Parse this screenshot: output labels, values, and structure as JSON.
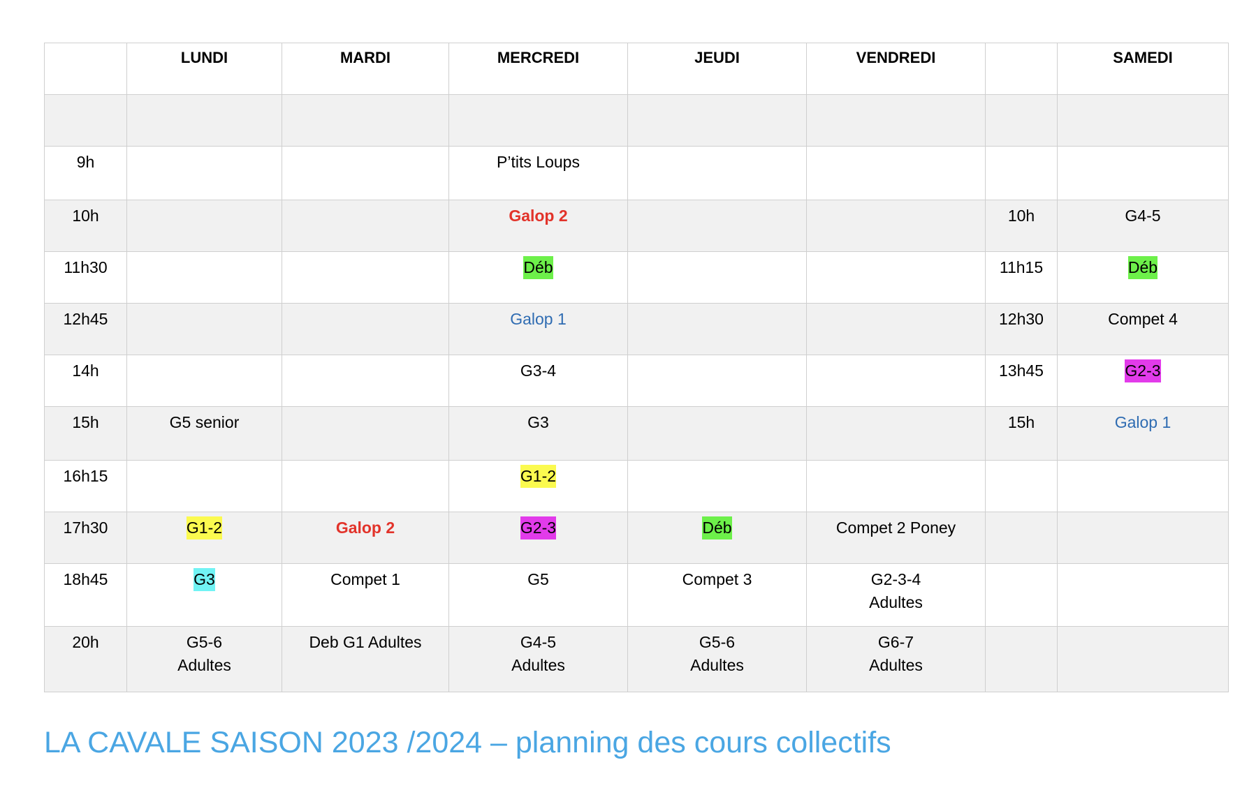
{
  "header": {
    "lundi": "LUNDI",
    "mardi": "MARDI",
    "mercredi": "MERCREDI",
    "jeudi": "JEUDI",
    "vendredi": "VENDREDI",
    "samedi": "SAMEDI"
  },
  "rows": [
    {
      "time": "9h",
      "lundi": "",
      "mardi": "",
      "mercredi": "P’tits Loups",
      "jeudi": "",
      "vendredi": "",
      "sat_time": "",
      "samedi": ""
    },
    {
      "time": "10h",
      "lundi": "",
      "mardi": "",
      "mercredi": "Galop 2",
      "jeudi": "",
      "vendredi": "",
      "sat_time": "10h",
      "samedi": "G4-5"
    },
    {
      "time": "11h30",
      "lundi": "",
      "mardi": "",
      "mercredi": "Déb",
      "jeudi": "",
      "vendredi": "",
      "sat_time": "11h15",
      "samedi": "Déb"
    },
    {
      "time": "12h45",
      "lundi": "",
      "mardi": "",
      "mercredi": "Galop 1",
      "jeudi": "",
      "vendredi": "",
      "sat_time": "12h30",
      "samedi": "Compet 4"
    },
    {
      "time": "14h",
      "lundi": "",
      "mardi": "",
      "mercredi": "G3-4",
      "jeudi": "",
      "vendredi": "",
      "sat_time": "13h45",
      "samedi": "G2-3"
    },
    {
      "time": "15h",
      "lundi": "G5 senior",
      "mardi": "",
      "mercredi": "G3",
      "jeudi": "",
      "vendredi": "",
      "sat_time": "15h",
      "samedi": "Galop 1"
    },
    {
      "time": "16h15",
      "lundi": "",
      "mardi": "",
      "mercredi": "G1-2",
      "jeudi": "",
      "vendredi": "",
      "sat_time": "",
      "samedi": ""
    },
    {
      "time": "17h30",
      "lundi": "G1-2",
      "mardi": "Galop 2",
      "mercredi": "G2-3",
      "jeudi": "Déb",
      "vendredi": "Compet 2 Poney",
      "sat_time": "",
      "samedi": ""
    },
    {
      "time": "18h45",
      "lundi": "G3",
      "mardi": "Compet 1",
      "mercredi": "G5",
      "jeudi": "Compet 3",
      "vendredi": "G2-3-4\nAdultes",
      "sat_time": "",
      "samedi": ""
    },
    {
      "time": "20h",
      "lundi": "G5-6\nAdultes",
      "mardi": "Deb G1 Adultes",
      "mercredi": "G4-5\nAdultes",
      "jeudi": "G5-6\nAdultes",
      "vendredi": "G6-7\nAdultes",
      "sat_time": "",
      "samedi": ""
    }
  ],
  "colors": {
    "highlight_green": "#6df04a",
    "highlight_yellow": "#fbfa4f",
    "highlight_magenta": "#e23bea",
    "highlight_cyan": "#71f3f4",
    "text_red": "#e2332a",
    "text_blue": "#2f6cb2",
    "title_blue": "#4aa6e3",
    "row_shade": "#f1f1f1"
  },
  "title": "LA CAVALE SAISON 2023 /2024 – planning des cours collectifs"
}
